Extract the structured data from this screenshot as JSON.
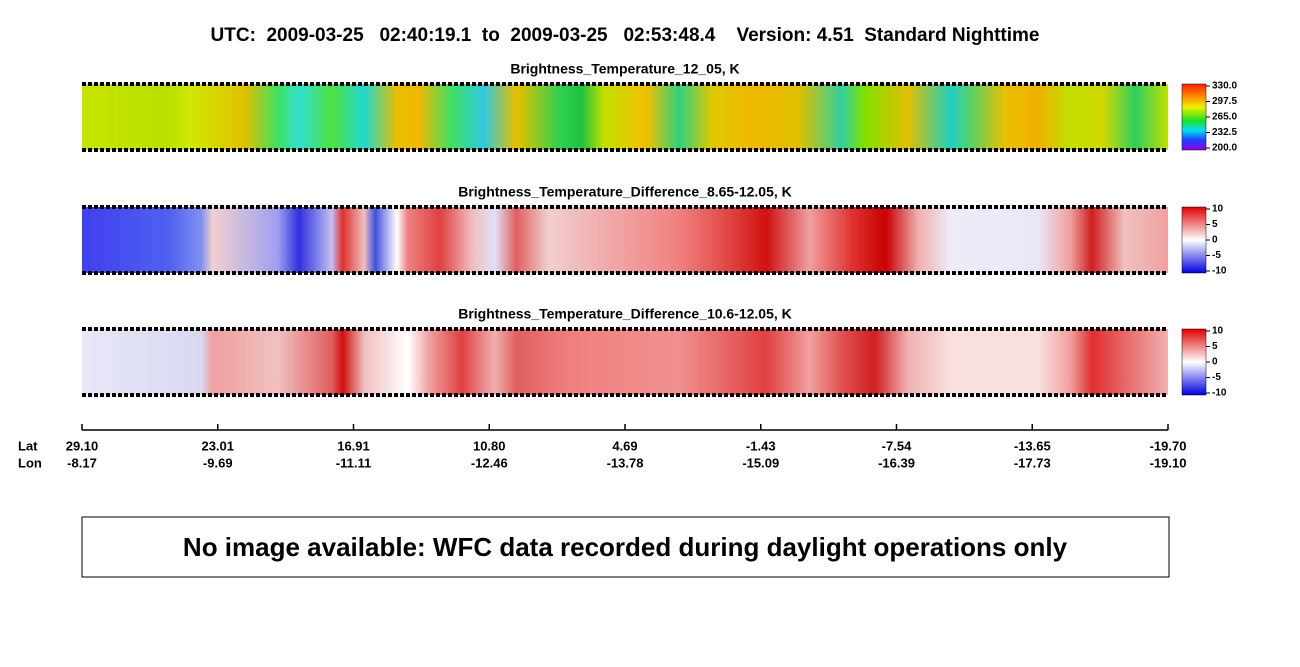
{
  "header": {
    "title": "UTC:  2009-03-25   02:40:19.1  to  2009-03-25   02:53:48.4    Version: 4.51  Standard Nighttime"
  },
  "panels": [
    {
      "title": "Brightness_Temperature_12_05, K",
      "colorbar": [
        "330.0",
        "297.5",
        "265.0",
        "232.5",
        "200.0"
      ]
    },
    {
      "title": "Brightness_Temperature_Difference_8.65-12.05, K",
      "colorbar": [
        "10",
        "5",
        "0",
        "-5",
        "-10"
      ]
    },
    {
      "title": "Brightness_Temperature_Difference_10.6-12.05, K",
      "colorbar": [
        "10",
        "5",
        "0",
        "-5",
        "-10"
      ]
    }
  ],
  "axis": {
    "lat_label": "Lat",
    "lon_label": "Lon",
    "lat": [
      "29.10",
      "23.01",
      "16.91",
      "10.80",
      "4.69",
      "-1.43",
      "-7.54",
      "-13.65",
      "-19.70"
    ],
    "lon": [
      "-8.17",
      "-9.69",
      "-11.11",
      "-12.46",
      "-13.78",
      "-15.09",
      "-16.39",
      "-17.73",
      "-19.10"
    ]
  },
  "notice": "No image available: WFC data recorded during daylight operations only"
}
